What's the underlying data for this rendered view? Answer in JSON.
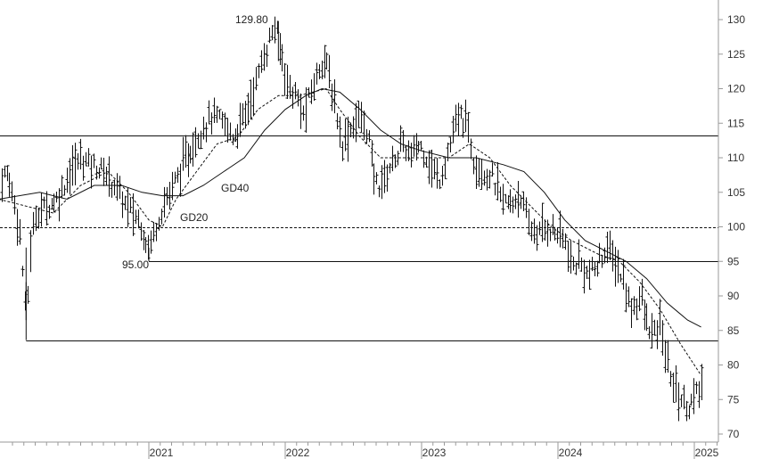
{
  "chart_data": {
    "type": "ohlc",
    "title": "",
    "xlabel": "",
    "ylabel": "",
    "ylim": [
      70,
      131
    ],
    "y_ticks": [
      70,
      75,
      80,
      85,
      90,
      95,
      100,
      105,
      110,
      115,
      120,
      125,
      130
    ],
    "x_ticks": [
      "2021",
      "2022",
      "2023",
      "2024",
      "2025"
    ],
    "x_range_years": [
      2019.9,
      2025.2
    ],
    "grid": false,
    "colors": {
      "bars": "#111111",
      "lines": "#111111",
      "axis": "#999999"
    },
    "labels": {
      "high": "129.80",
      "low": "95.00",
      "gd40": "GD40",
      "gd20": "GD20"
    },
    "horizontal_lines": [
      {
        "y": 113.2,
        "x_start": 2019.9,
        "style": "solid"
      },
      {
        "y": 100.0,
        "x_start": 2019.9,
        "style": "dashed"
      },
      {
        "y": 95.0,
        "x_start": 2021.0,
        "style": "solid"
      },
      {
        "y": 83.6,
        "x_start": 2020.1,
        "style": "solid"
      }
    ],
    "price_series": [
      [
        2019.9,
        106
      ],
      [
        2019.95,
        108
      ],
      [
        2020.0,
        105
      ],
      [
        2020.05,
        100
      ],
      [
        2020.08,
        92
      ],
      [
        2020.1,
        86
      ],
      [
        2020.13,
        97
      ],
      [
        2020.17,
        102
      ],
      [
        2020.25,
        103
      ],
      [
        2020.33,
        104
      ],
      [
        2020.42,
        108
      ],
      [
        2020.5,
        110
      ],
      [
        2020.58,
        109
      ],
      [
        2020.67,
        108
      ],
      [
        2020.75,
        106
      ],
      [
        2020.83,
        103
      ],
      [
        2020.92,
        101
      ],
      [
        2021.0,
        97
      ],
      [
        2021.05,
        100
      ],
      [
        2021.1,
        103
      ],
      [
        2021.2,
        107
      ],
      [
        2021.3,
        111
      ],
      [
        2021.38,
        114
      ],
      [
        2021.46,
        116
      ],
      [
        2021.54,
        115
      ],
      [
        2021.62,
        113
      ],
      [
        2021.7,
        116
      ],
      [
        2021.77,
        120
      ],
      [
        2021.83,
        124
      ],
      [
        2021.88,
        127
      ],
      [
        2021.92,
        129
      ],
      [
        2021.97,
        125
      ],
      [
        2022.03,
        120
      ],
      [
        2022.08,
        119
      ],
      [
        2022.13,
        116
      ],
      [
        2022.18,
        119
      ],
      [
        2022.23,
        122
      ],
      [
        2022.28,
        125
      ],
      [
        2022.33,
        121
      ],
      [
        2022.38,
        116
      ],
      [
        2022.42,
        112
      ],
      [
        2022.47,
        114
      ],
      [
        2022.53,
        116
      ],
      [
        2022.6,
        114
      ],
      [
        2022.65,
        107
      ],
      [
        2022.7,
        106
      ],
      [
        2022.75,
        108
      ],
      [
        2022.8,
        110
      ],
      [
        2022.86,
        112
      ],
      [
        2022.92,
        110
      ],
      [
        2022.97,
        112
      ],
      [
        2023.02,
        111
      ],
      [
        2023.08,
        108
      ],
      [
        2023.13,
        107
      ],
      [
        2023.18,
        110
      ],
      [
        2023.22,
        113
      ],
      [
        2023.27,
        116
      ],
      [
        2023.33,
        115
      ],
      [
        2023.38,
        110
      ],
      [
        2023.45,
        108
      ],
      [
        2023.52,
        107
      ],
      [
        2023.58,
        104
      ],
      [
        2023.65,
        103
      ],
      [
        2023.72,
        105
      ],
      [
        2023.78,
        100
      ],
      [
        2023.85,
        99
      ],
      [
        2023.92,
        100
      ],
      [
        2024.0,
        99
      ],
      [
        2024.05,
        98
      ],
      [
        2024.1,
        94
      ],
      [
        2024.15,
        95
      ],
      [
        2024.22,
        93
      ],
      [
        2024.28,
        94
      ],
      [
        2024.35,
        97
      ],
      [
        2024.42,
        95
      ],
      [
        2024.48,
        92
      ],
      [
        2024.53,
        88
      ],
      [
        2024.6,
        90
      ],
      [
        2024.65,
        86
      ],
      [
        2024.7,
        84
      ],
      [
        2024.75,
        86
      ],
      [
        2024.8,
        80
      ],
      [
        2024.85,
        77
      ],
      [
        2024.9,
        75
      ],
      [
        2024.95,
        74
      ],
      [
        2025.0,
        75
      ],
      [
        2025.05,
        77
      ]
    ],
    "gd20_series": [
      [
        2019.9,
        104
      ],
      [
        2020.1,
        103
      ],
      [
        2020.3,
        102
      ],
      [
        2020.5,
        106
      ],
      [
        2020.7,
        108
      ],
      [
        2020.85,
        105
      ],
      [
        2021.0,
        101
      ],
      [
        2021.1,
        100
      ],
      [
        2021.2,
        104
      ],
      [
        2021.35,
        108
      ],
      [
        2021.5,
        112
      ],
      [
        2021.65,
        113
      ],
      [
        2021.8,
        117
      ],
      [
        2021.95,
        119
      ],
      [
        2022.1,
        119
      ],
      [
        2022.3,
        120
      ],
      [
        2022.4,
        117
      ],
      [
        2022.55,
        113
      ],
      [
        2022.7,
        110
      ],
      [
        2022.85,
        110
      ],
      [
        2023.0,
        110
      ],
      [
        2023.2,
        110
      ],
      [
        2023.35,
        112
      ],
      [
        2023.5,
        110
      ],
      [
        2023.65,
        106
      ],
      [
        2023.8,
        103
      ],
      [
        2023.95,
        100
      ],
      [
        2024.1,
        98
      ],
      [
        2024.3,
        96
      ],
      [
        2024.45,
        95
      ],
      [
        2024.6,
        92
      ],
      [
        2024.75,
        88
      ],
      [
        2024.9,
        83
      ],
      [
        2025.0,
        80
      ],
      [
        2025.05,
        78.5
      ]
    ],
    "gd40_series": [
      [
        2019.9,
        104
      ],
      [
        2020.2,
        105
      ],
      [
        2020.4,
        104
      ],
      [
        2020.6,
        106
      ],
      [
        2020.8,
        106
      ],
      [
        2020.95,
        105
      ],
      [
        2021.1,
        104.5
      ],
      [
        2021.25,
        104.5
      ],
      [
        2021.4,
        106
      ],
      [
        2021.55,
        108
      ],
      [
        2021.7,
        110
      ],
      [
        2021.85,
        114
      ],
      [
        2022.0,
        117
      ],
      [
        2022.15,
        119
      ],
      [
        2022.27,
        120
      ],
      [
        2022.4,
        119.5
      ],
      [
        2022.55,
        117
      ],
      [
        2022.7,
        114
      ],
      [
        2022.85,
        112
      ],
      [
        2023.0,
        111
      ],
      [
        2023.2,
        110
      ],
      [
        2023.4,
        110
      ],
      [
        2023.6,
        109
      ],
      [
        2023.75,
        108
      ],
      [
        2023.9,
        105
      ],
      [
        2024.05,
        101
      ],
      [
        2024.2,
        98
      ],
      [
        2024.35,
        96.5
      ],
      [
        2024.5,
        95
      ],
      [
        2024.65,
        92.5
      ],
      [
        2024.8,
        89
      ],
      [
        2024.95,
        86.5
      ],
      [
        2025.05,
        85.5
      ]
    ]
  }
}
